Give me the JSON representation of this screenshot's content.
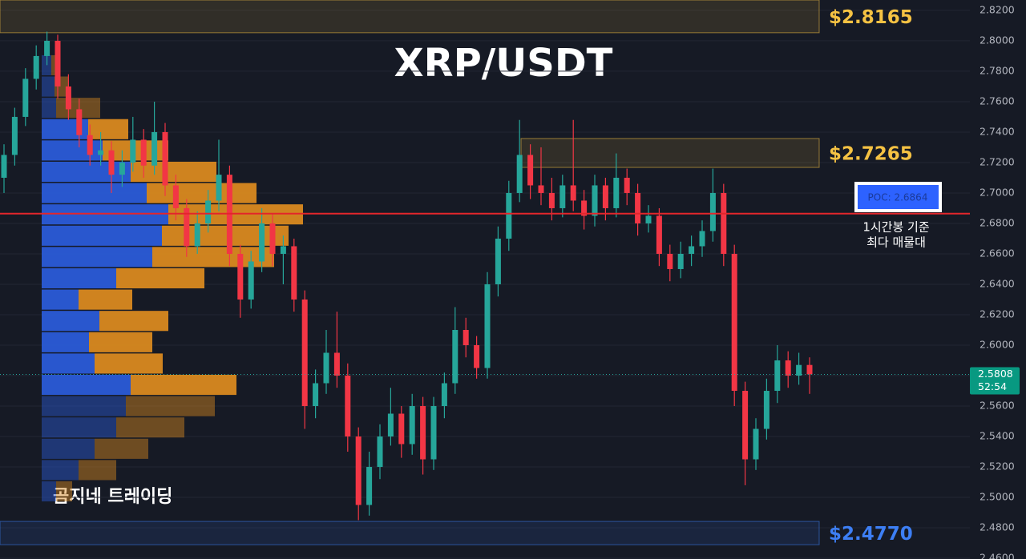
{
  "chart_data": {
    "type": "candlestick",
    "title": "XRP/USDT",
    "watermark": "곰지네 트레이딩",
    "up_color": "#26a69a",
    "down_color": "#f23645",
    "ylim": [
      2.4595,
      2.8268
    ],
    "yticks": [
      {
        "value": 2.82,
        "label": "2.8200"
      },
      {
        "value": 2.8,
        "label": "2.8000"
      },
      {
        "value": 2.78,
        "label": "2.7800"
      },
      {
        "value": 2.76,
        "label": "2.7600"
      },
      {
        "value": 2.74,
        "label": "2.7400"
      },
      {
        "value": 2.72,
        "label": "2.7200"
      },
      {
        "value": 2.7,
        "label": "2.7000"
      },
      {
        "value": 2.68,
        "label": "2.6800"
      },
      {
        "value": 2.66,
        "label": "2.6600"
      },
      {
        "value": 2.64,
        "label": "2.6400"
      },
      {
        "value": 2.62,
        "label": "2.6200"
      },
      {
        "value": 2.6,
        "label": "2.6000"
      },
      {
        "value": 2.58,
        "label": "2.5800"
      },
      {
        "value": 2.56,
        "label": "2.5600"
      },
      {
        "value": 2.54,
        "label": "2.5400"
      },
      {
        "value": 2.52,
        "label": "2.5200"
      },
      {
        "value": 2.5,
        "label": "2.5000"
      },
      {
        "value": 2.48,
        "label": "2.4800"
      },
      {
        "value": 2.46,
        "label": "2.4600"
      }
    ],
    "grid": true,
    "candles": [
      [
        2.71,
        2.732,
        2.7,
        2.725
      ],
      [
        2.725,
        2.756,
        2.718,
        2.75
      ],
      [
        2.75,
        2.782,
        2.744,
        2.775
      ],
      [
        2.775,
        2.797,
        2.768,
        2.79
      ],
      [
        2.79,
        2.806,
        2.784,
        2.8
      ],
      [
        2.8,
        2.804,
        2.762,
        2.77
      ],
      [
        2.77,
        2.778,
        2.748,
        2.755
      ],
      [
        2.755,
        2.762,
        2.73,
        2.738
      ],
      [
        2.738,
        2.745,
        2.718,
        2.725
      ],
      [
        2.725,
        2.74,
        2.718,
        2.728
      ],
      [
        2.728,
        2.734,
        2.7,
        2.712
      ],
      [
        2.712,
        2.728,
        2.704,
        2.72
      ],
      [
        2.72,
        2.75,
        2.714,
        2.735
      ],
      [
        2.735,
        2.742,
        2.71,
        2.718
      ],
      [
        2.718,
        2.76,
        2.712,
        2.74
      ],
      [
        2.74,
        2.746,
        2.698,
        2.705
      ],
      [
        2.705,
        2.712,
        2.682,
        2.69
      ],
      [
        2.69,
        2.696,
        2.658,
        2.665
      ],
      [
        2.665,
        2.688,
        2.66,
        2.68
      ],
      [
        2.68,
        2.702,
        2.674,
        2.695
      ],
      [
        2.695,
        2.735,
        2.688,
        2.712
      ],
      [
        2.712,
        2.718,
        2.652,
        2.66
      ],
      [
        2.66,
        2.666,
        2.618,
        2.63
      ],
      [
        2.63,
        2.662,
        2.624,
        2.655
      ],
      [
        2.655,
        2.69,
        2.648,
        2.68
      ],
      [
        2.68,
        2.686,
        2.652,
        2.66
      ],
      [
        2.66,
        2.672,
        2.64,
        2.665
      ],
      [
        2.665,
        2.67,
        2.622,
        2.63
      ],
      [
        2.63,
        2.636,
        2.545,
        2.56
      ],
      [
        2.56,
        2.584,
        2.552,
        2.575
      ],
      [
        2.575,
        2.61,
        2.568,
        2.595
      ],
      [
        2.595,
        2.622,
        2.572,
        2.58
      ],
      [
        2.58,
        2.588,
        2.53,
        2.54
      ],
      [
        2.54,
        2.546,
        2.485,
        2.495
      ],
      [
        2.495,
        2.53,
        2.488,
        2.52
      ],
      [
        2.52,
        2.548,
        2.512,
        2.54
      ],
      [
        2.54,
        2.572,
        2.534,
        2.555
      ],
      [
        2.555,
        2.56,
        2.526,
        2.535
      ],
      [
        2.535,
        2.568,
        2.528,
        2.56
      ],
      [
        2.56,
        2.566,
        2.515,
        2.525
      ],
      [
        2.525,
        2.566,
        2.518,
        2.56
      ],
      [
        2.56,
        2.582,
        2.552,
        2.575
      ],
      [
        2.575,
        2.625,
        2.568,
        2.61
      ],
      [
        2.61,
        2.618,
        2.592,
        2.6
      ],
      [
        2.6,
        2.606,
        2.578,
        2.585
      ],
      [
        2.585,
        2.648,
        2.578,
        2.64
      ],
      [
        2.64,
        2.678,
        2.632,
        2.67
      ],
      [
        2.67,
        2.708,
        2.662,
        2.7
      ],
      [
        2.7,
        2.748,
        2.694,
        2.725
      ],
      [
        2.725,
        2.732,
        2.696,
        2.705
      ],
      [
        2.705,
        2.73,
        2.692,
        2.7
      ],
      [
        2.7,
        2.71,
        2.682,
        2.69
      ],
      [
        2.69,
        2.712,
        2.684,
        2.705
      ],
      [
        2.705,
        2.748,
        2.688,
        2.695
      ],
      [
        2.695,
        2.702,
        2.676,
        2.685
      ],
      [
        2.685,
        2.712,
        2.678,
        2.705
      ],
      [
        2.705,
        2.71,
        2.682,
        2.69
      ],
      [
        2.69,
        2.726,
        2.684,
        2.71
      ],
      [
        2.71,
        2.716,
        2.692,
        2.7
      ],
      [
        2.7,
        2.706,
        2.672,
        2.68
      ],
      [
        2.68,
        2.692,
        2.674,
        2.685
      ],
      [
        2.685,
        2.69,
        2.652,
        2.66
      ],
      [
        2.66,
        2.666,
        2.642,
        2.65
      ],
      [
        2.65,
        2.668,
        2.644,
        2.66
      ],
      [
        2.66,
        2.672,
        2.652,
        2.665
      ],
      [
        2.665,
        2.682,
        2.658,
        2.675
      ],
      [
        2.675,
        2.716,
        2.668,
        2.7
      ],
      [
        2.7,
        2.706,
        2.652,
        2.66
      ],
      [
        2.66,
        2.666,
        2.56,
        2.57
      ],
      [
        2.57,
        2.576,
        2.508,
        2.525
      ],
      [
        2.525,
        2.552,
        2.518,
        2.545
      ],
      [
        2.545,
        2.578,
        2.538,
        2.57
      ],
      [
        2.57,
        2.6,
        2.562,
        2.59
      ],
      [
        2.59,
        2.596,
        2.572,
        2.58
      ],
      [
        2.58,
        2.595,
        2.574,
        2.587
      ],
      [
        2.587,
        2.592,
        2.568,
        2.5808
      ]
    ],
    "volume_profile": {
      "buy_color": "#2a5bd7",
      "sell_color": "#d9891f",
      "value_area": [
        2.5668,
        2.7488
      ],
      "rows": [
        {
          "price": 2.7838,
          "buy": 12,
          "sell": 11
        },
        {
          "price": 2.7698,
          "buy": 16,
          "sell": 17
        },
        {
          "price": 2.7558,
          "buy": 18,
          "sell": 55
        },
        {
          "price": 2.7418,
          "buy": 58,
          "sell": 50
        },
        {
          "price": 2.7278,
          "buy": 76,
          "sell": 82
        },
        {
          "price": 2.7138,
          "buy": 111,
          "sell": 107
        },
        {
          "price": 2.6998,
          "buy": 131,
          "sell": 137
        },
        {
          "price": 2.6858,
          "buy": 158,
          "sell": 168
        },
        {
          "price": 2.6718,
          "buy": 150,
          "sell": 158
        },
        {
          "price": 2.6578,
          "buy": 138,
          "sell": 152
        },
        {
          "price": 2.6438,
          "buy": 93,
          "sell": 110
        },
        {
          "price": 2.6298,
          "buy": 46,
          "sell": 67
        },
        {
          "price": 2.6158,
          "buy": 72,
          "sell": 86
        },
        {
          "price": 2.6018,
          "buy": 59,
          "sell": 79
        },
        {
          "price": 2.5878,
          "buy": 66,
          "sell": 85
        },
        {
          "price": 2.5738,
          "buy": 111,
          "sell": 132
        },
        {
          "price": 2.5598,
          "buy": 105,
          "sell": 111
        },
        {
          "price": 2.5458,
          "buy": 93,
          "sell": 85
        },
        {
          "price": 2.5318,
          "buy": 66,
          "sell": 67
        },
        {
          "price": 2.5178,
          "buy": 46,
          "sell": 47
        },
        {
          "price": 2.5038,
          "buy": 18,
          "sell": 20
        }
      ]
    },
    "zones": [
      {
        "label": "$2.8165",
        "top": 2.8268,
        "bottom": 2.8053,
        "color": "#f5c243"
      },
      {
        "label": "$2.7265",
        "top": 2.7358,
        "bottom": 2.7168,
        "color": "#f5c243"
      },
      {
        "label": "$2.4770",
        "top": 2.4842,
        "bottom": 2.4689,
        "color": "#3d7ff5"
      }
    ],
    "poc": {
      "value": 2.6864,
      "label": "POC: 2.6864",
      "color": "#e3262b"
    },
    "annotation_lines": [
      "1시간봉 기준",
      "최다 매물대"
    ],
    "last_price": 2.5808,
    "countdown": "52:54"
  }
}
